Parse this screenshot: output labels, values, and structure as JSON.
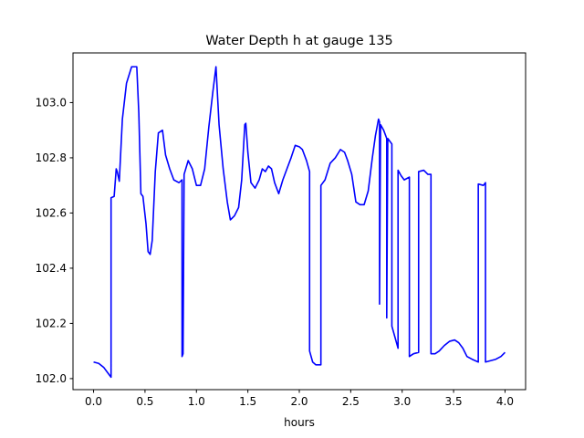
{
  "chart_data": {
    "type": "line",
    "title": "Water Depth h at gauge 135",
    "xlabel": "hours",
    "ylabel": "",
    "xlim": [
      -0.2,
      4.2
    ],
    "ylim": [
      101.96,
      103.18
    ],
    "xticks": [
      0.0,
      0.5,
      1.0,
      1.5,
      2.0,
      2.5,
      3.0,
      3.5,
      4.0
    ],
    "xtick_labels": [
      "0.0",
      "0.5",
      "1.0",
      "1.5",
      "2.0",
      "2.5",
      "3.0",
      "3.5",
      "4.0"
    ],
    "yticks": [
      102.0,
      102.2,
      102.4,
      102.6,
      102.8,
      103.0
    ],
    "ytick_labels": [
      "102.0",
      "102.2",
      "102.4",
      "102.6",
      "102.8",
      "103.0"
    ],
    "line_color": "#0000ff",
    "series": [
      {
        "x": [
          0.0,
          0.05,
          0.1,
          0.14,
          0.17,
          0.17,
          0.2,
          0.22,
          0.23,
          0.25,
          0.28,
          0.32,
          0.37,
          0.42,
          0.44,
          0.46,
          0.48,
          0.51,
          0.53,
          0.55,
          0.57,
          0.6,
          0.63,
          0.67,
          0.7,
          0.74,
          0.78,
          0.83,
          0.86,
          0.86,
          0.87,
          0.88,
          0.92,
          0.96,
          1.0,
          1.04,
          1.08,
          1.12,
          1.16,
          1.19,
          1.22,
          1.26,
          1.3,
          1.33,
          1.37,
          1.41,
          1.44,
          1.47,
          1.48,
          1.5,
          1.53,
          1.57,
          1.61,
          1.64,
          1.67,
          1.7,
          1.73,
          1.76,
          1.8,
          1.84,
          1.88,
          1.92,
          1.96,
          2.0,
          2.03,
          2.07,
          2.1,
          2.1,
          2.13,
          2.16,
          2.21,
          2.21,
          2.25,
          2.3,
          2.35,
          2.4,
          2.44,
          2.47,
          2.51,
          2.55,
          2.59,
          2.63,
          2.67,
          2.71,
          2.74,
          2.77,
          2.78,
          2.78,
          2.79,
          2.82,
          2.85,
          2.85,
          2.86,
          2.9,
          2.9,
          2.93,
          2.96,
          2.96,
          2.99,
          3.02,
          3.07,
          3.07,
          3.11,
          3.16,
          3.16,
          3.21,
          3.25,
          3.28,
          3.28,
          3.32,
          3.36,
          3.41,
          3.46,
          3.51,
          3.55,
          3.59,
          3.63,
          3.68,
          3.74,
          3.74,
          3.79,
          3.81,
          3.81,
          3.86,
          3.91,
          3.96,
          4.0
        ],
        "y": [
          102.06,
          102.055,
          102.04,
          102.02,
          102.005,
          102.655,
          102.66,
          102.76,
          102.75,
          102.715,
          102.94,
          103.07,
          103.13,
          103.13,
          102.96,
          102.67,
          102.66,
          102.56,
          102.46,
          102.45,
          102.5,
          102.75,
          102.89,
          102.9,
          102.81,
          102.76,
          102.72,
          102.71,
          102.72,
          102.08,
          102.09,
          102.74,
          102.79,
          102.76,
          102.7,
          102.7,
          102.76,
          102.91,
          103.04,
          103.13,
          102.92,
          102.76,
          102.64,
          102.575,
          102.59,
          102.62,
          102.72,
          102.92,
          102.925,
          102.82,
          102.71,
          102.69,
          102.72,
          102.76,
          102.75,
          102.77,
          102.76,
          102.71,
          102.67,
          102.72,
          102.76,
          102.8,
          102.845,
          102.84,
          102.83,
          102.79,
          102.75,
          102.1,
          102.06,
          102.05,
          102.05,
          102.7,
          102.72,
          102.78,
          102.8,
          102.83,
          102.82,
          102.79,
          102.74,
          102.64,
          102.63,
          102.63,
          102.68,
          102.8,
          102.88,
          102.94,
          102.93,
          102.27,
          102.92,
          102.9,
          102.87,
          102.22,
          102.87,
          102.85,
          102.19,
          102.15,
          102.11,
          102.755,
          102.735,
          102.72,
          102.73,
          102.08,
          102.09,
          102.095,
          102.75,
          102.755,
          102.74,
          102.74,
          102.09,
          102.09,
          102.1,
          102.12,
          102.135,
          102.14,
          102.13,
          102.11,
          102.08,
          102.07,
          102.06,
          102.705,
          102.7,
          102.71,
          102.06,
          102.065,
          102.07,
          102.08,
          102.095
        ]
      }
    ]
  }
}
